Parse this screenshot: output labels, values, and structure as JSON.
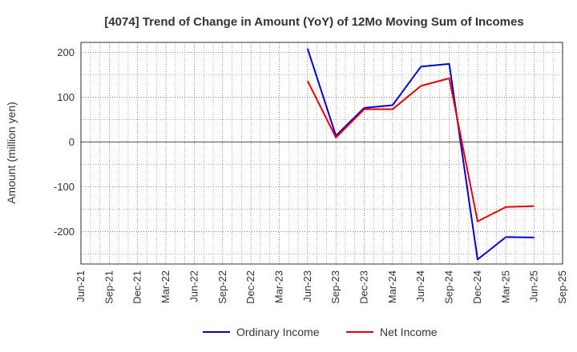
{
  "chart_data": {
    "type": "line",
    "title": "[4074]  Trend of Change in Amount (YoY) of 12Mo Moving Sum of Incomes",
    "xlabel": "",
    "ylabel": "Amount (million yen)",
    "categories": [
      "Jun-21",
      "Sep-21",
      "Dec-21",
      "Mar-22",
      "Jun-22",
      "Sep-22",
      "Dec-22",
      "Mar-23",
      "Jun-23",
      "Sep-23",
      "Dec-23",
      "Mar-24",
      "Jun-24",
      "Sep-24",
      "Dec-24",
      "Mar-25",
      "Jun-25",
      "Sep-25"
    ],
    "ylim": [
      -272,
      222
    ],
    "yticks": [
      200,
      100,
      0,
      -100,
      -200
    ],
    "grid": true,
    "legend_position": "bottom",
    "series": [
      {
        "name": "Ordinary Income",
        "color": "#0000cc",
        "values": [
          null,
          null,
          null,
          null,
          null,
          null,
          null,
          null,
          208,
          14,
          76,
          82,
          168,
          174,
          -262,
          -212,
          -213,
          null
        ]
      },
      {
        "name": "Net Income",
        "color": "#e60000",
        "values": [
          null,
          null,
          null,
          null,
          null,
          null,
          null,
          null,
          136,
          10,
          73,
          73,
          125,
          142,
          -177,
          -145,
          -143,
          null
        ]
      }
    ]
  }
}
